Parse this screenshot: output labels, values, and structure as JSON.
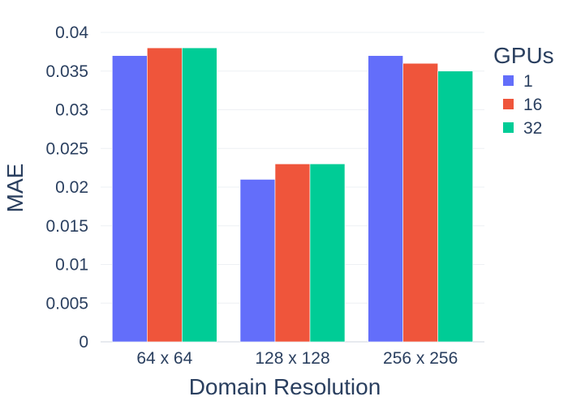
{
  "chart_data": {
    "type": "bar",
    "categories": [
      "64 x 64",
      "128 x 128",
      "256 x 256"
    ],
    "series": [
      {
        "name": "1",
        "values": [
          0.037,
          0.021,
          0.037
        ],
        "color": "#636efa"
      },
      {
        "name": "16",
        "values": [
          0.038,
          0.023,
          0.036
        ],
        "color": "#ef553b"
      },
      {
        "name": "32",
        "values": [
          0.038,
          0.023,
          0.035
        ],
        "color": "#00cc96"
      }
    ],
    "title": "",
    "xlabel": "Domain Resolution",
    "ylabel": "MAE",
    "ylim": [
      0,
      0.04
    ],
    "yticks": [
      "0",
      "0.005",
      "0.01",
      "0.015",
      "0.02",
      "0.025",
      "0.03",
      "0.035",
      "0.04"
    ],
    "legend_title": "GPUs",
    "legend_position": "right",
    "grid": true
  }
}
